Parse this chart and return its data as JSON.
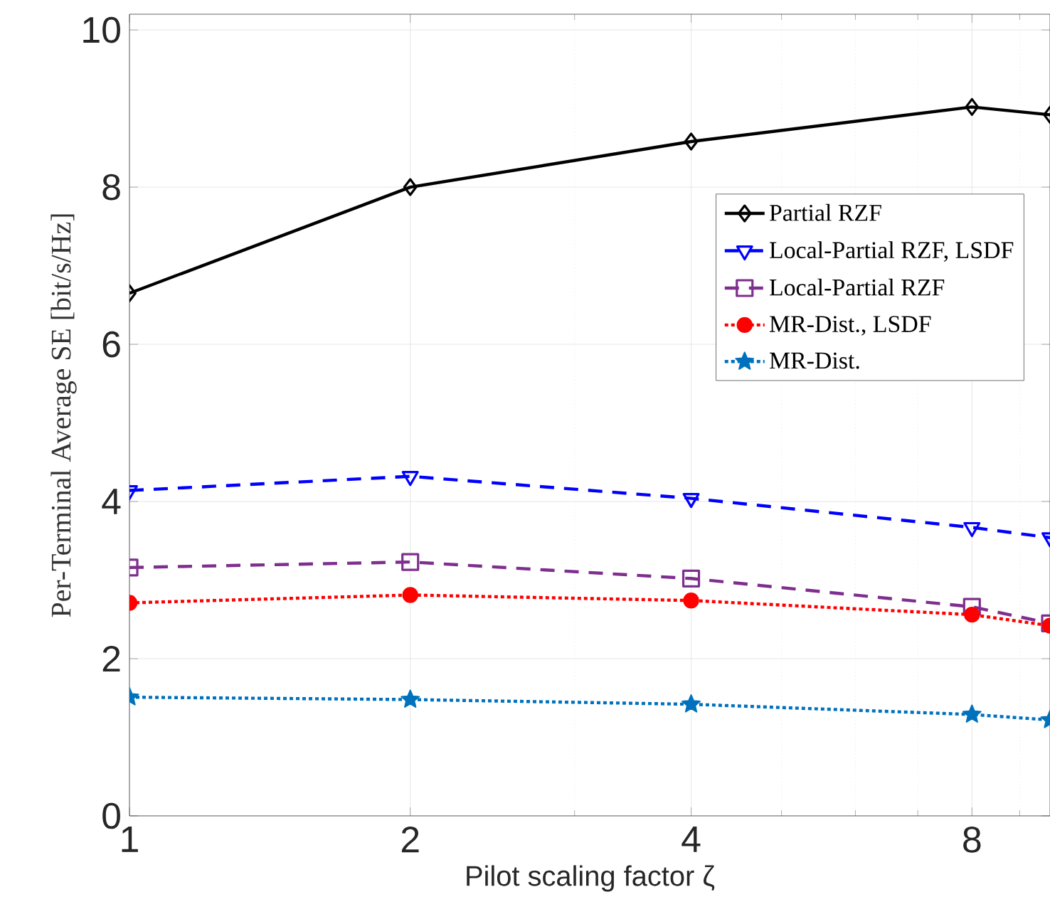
{
  "chart_data": {
    "type": "line",
    "xlabel": "Pilot scaling factor ζ",
    "ylabel": "Per-Terminal Average SE [bit/s/Hz]",
    "log": "x",
    "xlim": [
      1,
      9.7
    ],
    "ylim": [
      0,
      10.2
    ],
    "xticks": [
      1,
      2,
      {
        "value": 3,
        "label": null
      },
      4,
      {
        "value": 5,
        "label": null
      },
      {
        "value": 6,
        "label": null
      },
      {
        "value": 7,
        "label": null
      },
      8,
      {
        "value": 9,
        "label": null
      }
    ],
    "yticks": [
      0,
      2,
      4,
      6,
      8,
      10
    ],
    "grid": true,
    "legend": "top right",
    "series": [
      {
        "name": "Partial RZF",
        "color": "#000000",
        "marker": "diamond",
        "line_style": "solid",
        "x": [
          1,
          2,
          4,
          8,
          9.7
        ],
        "values": [
          6.65,
          8.0,
          8.58,
          9.02,
          8.92
        ]
      },
      {
        "name": "Local-Partial RZF, LSDF",
        "color": "#0000ff",
        "marker": "triangle",
        "line_style": "dashed",
        "x": [
          1,
          2,
          4,
          8,
          9.7
        ],
        "values": [
          4.14,
          4.32,
          4.04,
          3.67,
          3.54
        ]
      },
      {
        "name": "Local-Partial RZF",
        "color": "#7e2f8e",
        "marker": "square",
        "line_style": "dashed",
        "x": [
          1,
          2,
          4,
          8,
          9.7
        ],
        "values": [
          3.16,
          3.23,
          3.02,
          2.66,
          2.45
        ]
      },
      {
        "name": "MR-Dist., LSDF",
        "color": "#ff0000",
        "marker": "circle",
        "line_style": "dotted",
        "x": [
          1,
          2,
          4,
          8,
          9.7
        ],
        "values": [
          2.71,
          2.81,
          2.74,
          2.56,
          2.42
        ]
      },
      {
        "name": "MR-Dist.",
        "color": "#0072bd",
        "marker": "star",
        "line_style": "dotted",
        "x": [
          1,
          2,
          4,
          8,
          9.7
        ],
        "values": [
          1.51,
          1.48,
          1.42,
          1.29,
          1.22
        ]
      }
    ]
  }
}
